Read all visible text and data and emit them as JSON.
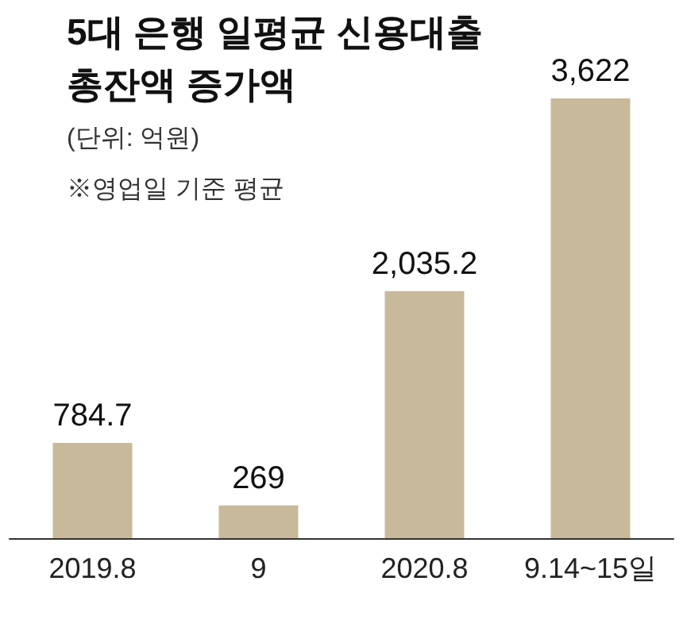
{
  "chart_data": {
    "type": "bar",
    "title": "5대 은행 일평균 신용대출 총잔액 증가액",
    "subtitle": "(단위: 억원)",
    "annotations": [
      "※영업일 기준 평균"
    ],
    "categories": [
      "2019.8",
      "9",
      "2020.8",
      "9.14~15일"
    ],
    "values": [
      784.7,
      269,
      2035.2,
      3622
    ],
    "value_labels": [
      "784.7",
      "269",
      "2,035.2",
      "3,622"
    ],
    "color": "#c8b99b"
  }
}
